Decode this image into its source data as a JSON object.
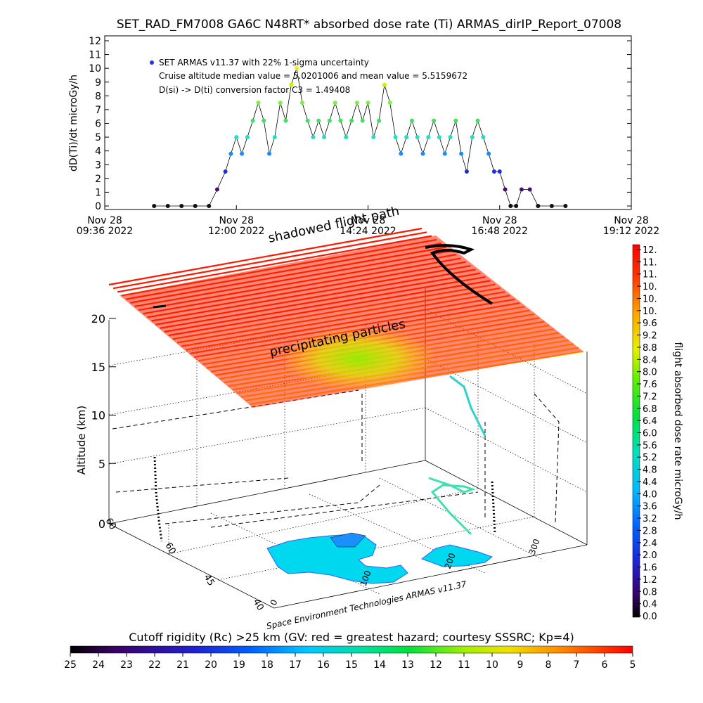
{
  "figure": {
    "title": "SET_RAD_FM7008  GA6C N48RT* absorbed dose rate (Ti) ARMAS_dirIP_Report_07008",
    "footer_credit": "Space Environment Technologies ARMAS v11.37",
    "label_shadowed": "shadowed flight path",
    "label_precipitating": "precipitating particles"
  },
  "chart_data": [
    {
      "type": "scatter",
      "ylabel": "dD(Ti)/dt microGy/h",
      "ylim": [
        0,
        12
      ],
      "yticks": [
        "0",
        "1",
        "2",
        "3",
        "4",
        "5",
        "6",
        "7",
        "8",
        "9",
        "10",
        "11",
        "12"
      ],
      "xticks": [
        {
          "line1": "Nov 28",
          "line2": "09:36 2022"
        },
        {
          "line1": "Nov 28",
          "line2": "12:00 2022"
        },
        {
          "line1": "Nov 28",
          "line2": "14:24 2022"
        },
        {
          "line1": "Nov 28",
          "line2": "16:48 2022"
        },
        {
          "line1": "Nov 28",
          "line2": "19:12 2022"
        }
      ],
      "annotations": [
        "SET ARMAS v11.37 with 22% 1-sigma uncertainty",
        "Cruise altitude median value = 5.0201006 and mean value = 5.5159672",
        "D(si) -> D(ti) conversion factor C3 = 1.49408"
      ],
      "legend_marker_color": "#1a3cd6",
      "series": [
        {
          "x_hours": [
            10.5,
            10.75,
            11.0,
            11.25,
            11.5,
            11.65,
            11.8,
            11.9,
            12.0,
            12.1,
            12.2,
            12.3,
            12.4,
            12.5,
            12.6,
            12.7,
            12.8,
            12.9,
            13.0,
            13.1,
            13.2,
            13.3,
            13.4,
            13.5,
            13.6,
            13.7,
            13.8,
            13.9,
            14.0,
            14.1,
            14.2,
            14.3,
            14.4,
            14.5,
            14.6,
            14.7,
            14.8,
            14.9,
            15.0,
            15.1,
            15.2,
            15.3,
            15.4,
            15.5,
            15.6,
            15.7,
            15.8,
            15.9,
            16.0,
            16.1,
            16.2,
            16.3,
            16.4,
            16.5,
            16.6,
            16.7,
            16.8,
            16.9,
            17.0,
            17.1,
            17.2,
            17.35,
            17.5,
            17.75,
            18.0
          ],
          "values": [
            0,
            0,
            0,
            0,
            0,
            1.2,
            2.5,
            3.8,
            5.0,
            3.8,
            5.0,
            6.2,
            7.5,
            6.2,
            3.8,
            5.0,
            7.5,
            6.2,
            8.8,
            10.0,
            7.5,
            6.2,
            5.0,
            6.2,
            5.0,
            6.2,
            7.5,
            6.2,
            5.0,
            6.2,
            7.5,
            6.2,
            7.5,
            5.0,
            6.2,
            8.8,
            7.5,
            5.0,
            3.8,
            5.0,
            6.2,
            5.0,
            3.8,
            5.0,
            6.2,
            5.0,
            3.8,
            5.0,
            6.2,
            3.8,
            2.5,
            5.0,
            6.2,
            5.0,
            3.8,
            2.5,
            2.5,
            1.2,
            0,
            0,
            1.2,
            1.2,
            0,
            0,
            0
          ]
        }
      ]
    },
    {
      "type": "scatter",
      "ylabel": "Altitude (km)",
      "ylim": [
        0,
        20
      ],
      "yticks": [
        "0",
        "5",
        "10",
        "15",
        "20"
      ],
      "lat_ticks": [
        "60",
        "45",
        "40"
      ],
      "lon_ticks": [
        "0",
        "100",
        "200",
        "300"
      ],
      "series": [
        {
          "name": "shadowed flight path",
          "values": [
            0.5,
            2.0,
            5.0,
            8.0,
            10.5,
            12.0,
            13.0
          ]
        }
      ]
    },
    {
      "type": "heatmap",
      "colorbar_label": "flight absorbed dose rate microGy/h",
      "colorbar_ticks": [
        "12.",
        "11.",
        "11.",
        "10.",
        "10.",
        "10.",
        "9.6",
        "9.2",
        "8.8",
        "8.4",
        "8.0",
        "7.6",
        "7.2",
        "6.8",
        "6.4",
        "6.0",
        "5.6",
        "5.2",
        "4.8",
        "4.4",
        "4.0",
        "3.6",
        "3.2",
        "2.8",
        "2.4",
        "2.0",
        "1.6",
        "1.2",
        "0.8",
        "0.4",
        "0.0"
      ],
      "range": [
        0.0,
        12.0
      ]
    },
    {
      "type": "heatmap",
      "colorbar_label": "Cutoff rigidity (Rc) >25 km (GV: red = greatest hazard; courtesy SSSRC; Kp=4)",
      "colorbar_ticks": [
        "25",
        "24",
        "23",
        "22",
        "21",
        "20",
        "19",
        "18",
        "17",
        "16",
        "15",
        "14",
        "13",
        "12",
        "11",
        "10",
        "9",
        "8",
        "7",
        "6",
        "5"
      ],
      "range": [
        25,
        5
      ]
    }
  ]
}
